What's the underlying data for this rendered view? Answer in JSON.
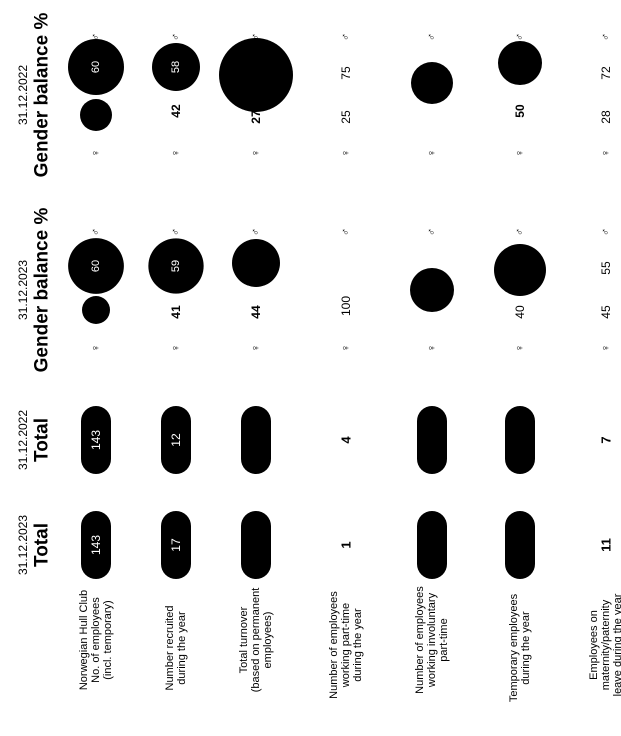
{
  "rows": [
    {
      "label": "Norwegian Hull Club No. of employees (incl. temporary)",
      "label_lines": [
        "Norwegian Hull Club",
        "No. of employees",
        "(incl. temporary)"
      ],
      "total_2023": "143",
      "total_2022": "143",
      "g2023": {
        "female": "",
        "male": "60"
      },
      "g2022": {
        "female": "",
        "male": "60"
      }
    },
    {
      "label": "Number recruited during the year",
      "label_lines": [
        "Number recruited",
        "during the year"
      ],
      "total_2023": "17",
      "total_2022": "12",
      "g2023": {
        "female": "41",
        "male": "59"
      },
      "g2022": {
        "female": "42",
        "male": "58"
      }
    },
    {
      "label": "Total turnover (based on permanent employees)",
      "label_lines": [
        "Total turnover",
        "(based on permanent",
        "employees)"
      ],
      "total_2023": "",
      "total_2022": "",
      "g2023": {
        "female": "44",
        "male": ""
      },
      "g2022": {
        "female": "27",
        "male": ""
      }
    },
    {
      "label": "Number of employees working part-time during the year",
      "label_lines": [
        "Number of employees",
        "working part-time",
        "during the year"
      ],
      "total_2023": "1",
      "total_2022": "4",
      "g2023": {
        "female": "100",
        "male": ""
      },
      "g2022": {
        "female": "25",
        "male": "75"
      }
    },
    {
      "label": "Number of employees working involuntary part-time",
      "label_lines": [
        "Number of employees",
        "working involuntary",
        "part-time"
      ],
      "total_2023": "",
      "total_2022": "",
      "g2023": {
        "female": "",
        "male": ""
      },
      "g2022": {
        "female": "",
        "male": ""
      }
    },
    {
      "label": "Temporary employees during the year",
      "label_lines": [
        "Temporary employees",
        "during the year"
      ],
      "total_2023": "",
      "total_2022": "",
      "g2023": {
        "female": "40",
        "male": ""
      },
      "g2022": {
        "female": "50",
        "male": ""
      }
    },
    {
      "label": "Employees on maternity/paternity leave during the year",
      "label_lines": [
        "Employees on",
        "maternity/paternity",
        "leave during the year"
      ],
      "total_2023": "11",
      "total_2022": "7",
      "g2023": {
        "female": "45",
        "male": "55"
      },
      "g2022": {
        "female": "28",
        "male": "72"
      }
    }
  ],
  "headers": {
    "total_2023": {
      "date": "31.12.2023",
      "title": "Total"
    },
    "total_2022": {
      "date": "31.12.2022",
      "title": "Total"
    },
    "gb_2023": {
      "date": "31.12.2023",
      "title": "Gender balance %"
    },
    "gb_2022": {
      "date": "31.12.2022",
      "title": "Gender balance %"
    }
  },
  "symbols": {
    "female": "♀",
    "male": "♂"
  },
  "chart_data": {
    "type": "table",
    "row_labels": [
      "Norwegian Hull Club No. of employees (incl. temporary)",
      "Number recruited during the year",
      "Total turnover (based on permanent employees)",
      "Number of employees working part-time during the year",
      "Number of employees working involuntary part-time",
      "Temporary employees during the year",
      "Employees on maternity/paternity leave during the year"
    ],
    "total_2023": [
      "143",
      "17",
      "",
      "1",
      "",
      "",
      "11"
    ],
    "total_2022": [
      "143",
      "12",
      "",
      "4",
      "",
      "",
      "7"
    ],
    "gender_balance_2023_female": [
      "",
      "41",
      "44",
      "100",
      "",
      "40",
      "45"
    ],
    "gender_balance_2023_male": [
      "60",
      "59",
      "",
      "",
      "",
      "",
      "55"
    ],
    "gender_balance_2022_female": [
      "",
      "42",
      "27",
      "25",
      "",
      "50",
      "28"
    ],
    "gender_balance_2022_male": [
      "60",
      "58",
      "",
      "75",
      "",
      "",
      "72"
    ]
  }
}
